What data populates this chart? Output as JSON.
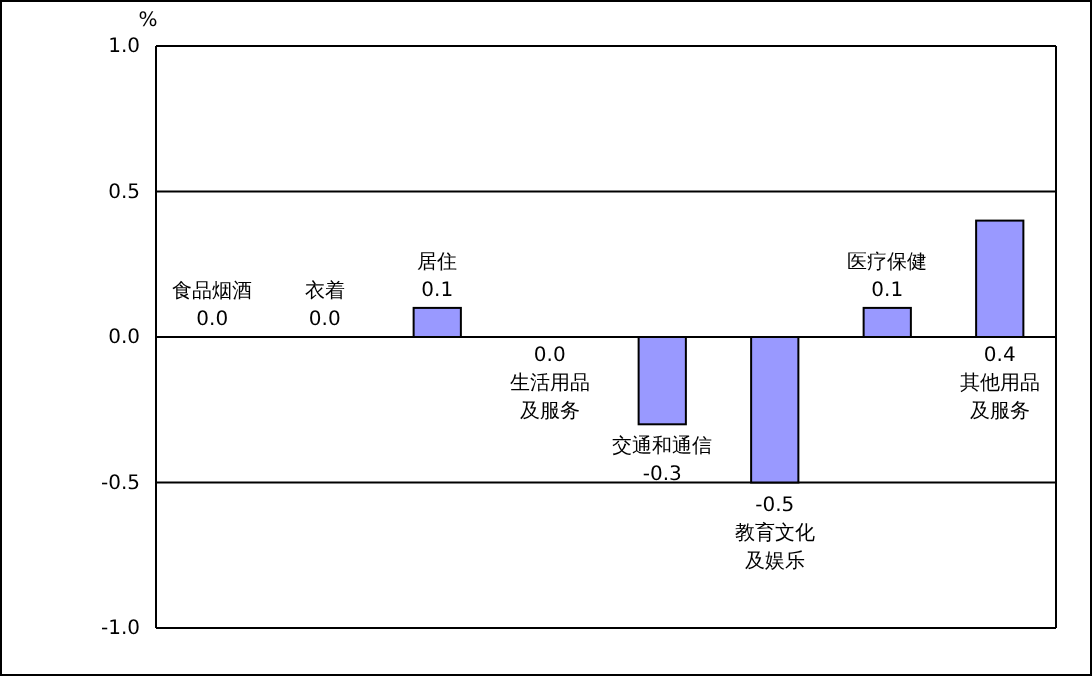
{
  "chart_data": {
    "type": "bar",
    "ylabel": "%",
    "categories": [
      "食品烟酒",
      "衣着",
      "居住",
      "生活用品及服务",
      "交通和通信",
      "教育文化及娱乐",
      "医疗保健",
      "其他用品及服务"
    ],
    "values": [
      0.0,
      0.0,
      0.1,
      0.0,
      -0.3,
      -0.5,
      0.1,
      0.4
    ],
    "value_labels": [
      "0.0",
      "0.0",
      "0.1",
      "0.0",
      "-0.3",
      "-0.5",
      "0.1",
      "0.4"
    ],
    "color": "#9999ff",
    "ylim": [
      -1.0,
      1.0
    ],
    "yticks": [
      {
        "value": 1.0,
        "label": "1.0"
      },
      {
        "value": 0.5,
        "label": "0.5"
      },
      {
        "value": 0.0,
        "label": "0.0"
      },
      {
        "value": -0.5,
        "label": "-0.5"
      },
      {
        "value": -1.0,
        "label": "-1.0"
      }
    ],
    "grid": "y"
  }
}
